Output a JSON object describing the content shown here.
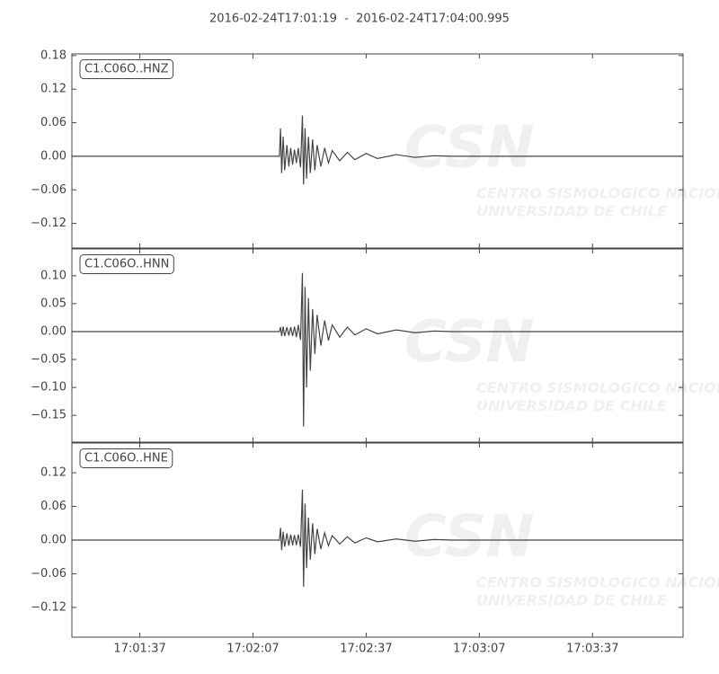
{
  "title": "2016-02-24T17:01:19  -  2016-02-24T17:04:00.995",
  "watermark": {
    "logo": "CSN",
    "lines": [
      "CENTRO SISMOLOGICO NACIONAL",
      "UNIVERSIDAD DE CHILE"
    ]
  },
  "chart_data": [
    {
      "type": "line",
      "legend": "upper left",
      "grid": false,
      "xlim": [
        "17:01:19",
        "17:04:00.995"
      ],
      "ylim": [
        -0.164,
        0.183
      ],
      "yticks": [
        {
          "value": -0.12,
          "label": "−0.12"
        },
        {
          "value": -0.06,
          "label": "−0.06"
        },
        {
          "value": 0,
          "label": "0.00"
        },
        0.06,
        0.12,
        0.18
      ],
      "series": [
        {
          "name": "C1.C06O..HNZ",
          "color": "#444444",
          "x": [
            "17:01:19",
            "17:02:14",
            "17:02:14.3",
            "17:02:14.6",
            "17:02:15",
            "17:02:15.4",
            "17:02:16",
            "17:02:16.5",
            "17:02:17",
            "17:02:17.5",
            "17:02:18",
            "17:02:18.5",
            "17:02:19",
            "17:02:19.6",
            "17:02:20.1",
            "17:02:20.4",
            "17:02:20.8",
            "17:02:21.2",
            "17:02:21.7",
            "17:02:22.2",
            "17:02:22.8",
            "17:02:23.4",
            "17:02:24",
            "17:02:25",
            "17:02:26",
            "17:02:27",
            "17:02:28",
            "17:02:30",
            "17:02:32",
            "17:02:34",
            "17:02:37",
            "17:02:40",
            "17:02:45",
            "17:02:50",
            "17:02:55",
            "17:03:00",
            "17:04:00.995"
          ],
          "values": [
            0,
            0,
            0.05,
            -0.03,
            0.035,
            -0.025,
            0.02,
            -0.018,
            0.015,
            -0.015,
            0.012,
            -0.012,
            0.015,
            -0.02,
            0.073,
            -0.05,
            0.05,
            -0.04,
            0.035,
            -0.03,
            0.03,
            -0.025,
            0.02,
            -0.018,
            0.015,
            -0.012,
            0.01,
            -0.008,
            0.007,
            -0.006,
            0.005,
            -0.004,
            0.003,
            -0.002,
            0.001,
            0,
            0
          ]
        }
      ]
    },
    {
      "type": "line",
      "legend": "upper left",
      "grid": false,
      "xlim": [
        "17:01:19",
        "17:04:00.995"
      ],
      "ylim": [
        -0.198,
        0.148
      ],
      "yticks": [
        {
          "value": -0.15,
          "label": "−0.15"
        },
        {
          "value": -0.1,
          "label": "−0.10"
        },
        {
          "value": -0.05,
          "label": "−0.05"
        },
        {
          "value": 0,
          "label": "0.00"
        },
        0.05,
        {
          "value": 0.1,
          "label": "0.10"
        }
      ],
      "series": [
        {
          "name": "C1.C06O..HNN",
          "color": "#444444",
          "x": [
            "17:01:19",
            "17:02:14",
            "17:02:14.3",
            "17:02:14.6",
            "17:02:15",
            "17:02:15.4",
            "17:02:16",
            "17:02:16.5",
            "17:02:17",
            "17:02:17.5",
            "17:02:18",
            "17:02:18.5",
            "17:02:19",
            "17:02:19.6",
            "17:02:20.1",
            "17:02:20.4",
            "17:02:20.8",
            "17:02:21.2",
            "17:02:21.7",
            "17:02:22.2",
            "17:02:22.8",
            "17:02:23.4",
            "17:02:24",
            "17:02:25",
            "17:02:26",
            "17:02:27",
            "17:02:28",
            "17:02:30",
            "17:02:32",
            "17:02:34",
            "17:02:37",
            "17:02:40",
            "17:02:45",
            "17:02:50",
            "17:02:55",
            "17:03:00",
            "17:04:00.995"
          ],
          "values": [
            0,
            0,
            0.008,
            -0.008,
            0.009,
            -0.008,
            0.008,
            -0.007,
            0.008,
            -0.008,
            0.009,
            -0.01,
            0.012,
            -0.015,
            0.105,
            -0.17,
            0.08,
            -0.1,
            0.06,
            -0.07,
            0.04,
            -0.04,
            0.03,
            -0.025,
            0.02,
            -0.016,
            0.012,
            -0.01,
            0.008,
            -0.006,
            0.005,
            -0.004,
            0.003,
            -0.002,
            0.001,
            0,
            0
          ]
        }
      ]
    },
    {
      "type": "line",
      "legend": "upper left",
      "grid": false,
      "xlim": [
        "17:01:19",
        "17:04:00.995"
      ],
      "xticks": [
        "17:01:37",
        "17:02:07",
        "17:02:37",
        "17:03:07",
        "17:03:37"
      ],
      "ylim": [
        -0.173,
        0.173
      ],
      "yticks": [
        {
          "value": -0.12,
          "label": "−0.12"
        },
        {
          "value": -0.06,
          "label": "−0.06"
        },
        {
          "value": 0,
          "label": "0.00"
        },
        0.06,
        0.12
      ],
      "series": [
        {
          "name": "C1.C06O..HNE",
          "color": "#444444",
          "x": [
            "17:01:19",
            "17:02:14",
            "17:02:14.3",
            "17:02:14.6",
            "17:02:15",
            "17:02:15.4",
            "17:02:16",
            "17:02:16.5",
            "17:02:17",
            "17:02:17.5",
            "17:02:18",
            "17:02:18.5",
            "17:02:19",
            "17:02:19.6",
            "17:02:20.1",
            "17:02:20.4",
            "17:02:20.8",
            "17:02:21.2",
            "17:02:21.7",
            "17:02:22.2",
            "17:02:22.8",
            "17:02:23.4",
            "17:02:24",
            "17:02:25",
            "17:02:26",
            "17:02:27",
            "17:02:28",
            "17:02:30",
            "17:02:32",
            "17:02:34",
            "17:02:37",
            "17:02:40",
            "17:02:45",
            "17:02:50",
            "17:02:55",
            "17:03:00",
            "17:04:00.995"
          ],
          "values": [
            0,
            0,
            0.022,
            -0.018,
            0.015,
            -0.012,
            0.012,
            -0.01,
            0.01,
            -0.009,
            0.009,
            -0.009,
            0.01,
            -0.012,
            0.09,
            -0.083,
            0.065,
            -0.05,
            0.04,
            -0.035,
            0.03,
            -0.025,
            0.02,
            -0.016,
            0.013,
            -0.01,
            0.008,
            -0.007,
            0.006,
            -0.005,
            0.004,
            -0.003,
            0.002,
            -0.002,
            0.001,
            0,
            0
          ]
        }
      ]
    }
  ]
}
